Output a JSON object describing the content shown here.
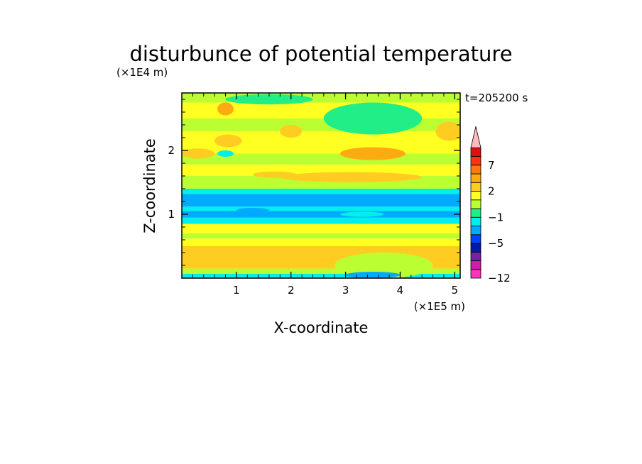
{
  "chart_data": {
    "type": "heatmap",
    "title": "disturbunce of potential temperature",
    "xlabel": "X-coordinate",
    "ylabel": "Z-coordinate",
    "x_unit": "(×1E5 m)",
    "y_unit": "(×1E4 m)",
    "time_label": "t=205200 s",
    "xlim": [
      0,
      5.1
    ],
    "ylim": [
      0,
      2.9
    ],
    "x_ticks": [
      1,
      2,
      3,
      4,
      5
    ],
    "y_ticks": [
      1,
      2
    ],
    "colorbar": {
      "levels": [
        -12,
        -11,
        -9,
        -7,
        -5,
        -4,
        -3,
        -1,
        0,
        1,
        2,
        3,
        5,
        7,
        9,
        11
      ],
      "labels": [
        "-12",
        "-5",
        "-1",
        "2",
        "7"
      ],
      "label_values": [
        -12,
        -5,
        -1,
        2,
        7
      ],
      "colors": [
        "#ff33bb",
        "#cc1fa6",
        "#7a1fa8",
        "#001aa8",
        "#0044ff",
        "#00aaff",
        "#00eeee",
        "#22ee88",
        "#bbff33",
        "#ffff22",
        "#ffcc22",
        "#ffaa11",
        "#ff7711",
        "#ff3311",
        "#dd1111",
        "#ffbbbb"
      ],
      "extend_max": true
    },
    "bands": [
      {
        "z0": 0.0,
        "z1": 0.07,
        "v": -1.5
      },
      {
        "z0": 0.07,
        "z1": 0.15,
        "v": 0.5
      },
      {
        "z0": 0.15,
        "z1": 0.5,
        "v": 2.5
      },
      {
        "z0": 0.5,
        "z1": 0.62,
        "v": 1.5
      },
      {
        "z0": 0.62,
        "z1": 0.7,
        "v": 0.5
      },
      {
        "z0": 0.7,
        "z1": 0.85,
        "v": 1.5
      },
      {
        "z0": 0.85,
        "z1": 0.95,
        "v": -1.5
      },
      {
        "z0": 0.95,
        "z1": 1.05,
        "v": -3.5
      },
      {
        "z0": 1.05,
        "z1": 1.12,
        "v": -1.5
      },
      {
        "z0": 1.12,
        "z1": 1.32,
        "v": -3.5
      },
      {
        "z0": 1.32,
        "z1": 1.4,
        "v": -1.5
      },
      {
        "z0": 1.4,
        "z1": 1.6,
        "v": 0.5
      },
      {
        "z0": 1.6,
        "z1": 1.78,
        "v": 1.5
      },
      {
        "z0": 1.78,
        "z1": 1.95,
        "v": 0.5
      },
      {
        "z0": 1.95,
        "z1": 2.3,
        "v": 1.5
      },
      {
        "z0": 2.3,
        "z1": 2.5,
        "v": 0.5
      },
      {
        "z0": 2.5,
        "z1": 2.75,
        "v": 1.5
      },
      {
        "z0": 2.75,
        "z1": 2.9,
        "v": 0.5
      }
    ],
    "features": [
      {
        "x": 0.6,
        "z": 0.3,
        "rx": 1.5,
        "rz": 0.12,
        "v": 2.5
      },
      {
        "x": 3.7,
        "z": 0.2,
        "rx": 0.9,
        "rz": 0.2,
        "v": 0.5
      },
      {
        "x": 3.5,
        "z": 0.05,
        "rx": 0.5,
        "rz": 0.05,
        "v": -3.5
      },
      {
        "x": 1.3,
        "z": 1.06,
        "rx": 0.3,
        "rz": 0.04,
        "v": -3.5
      },
      {
        "x": 3.3,
        "z": 1.0,
        "rx": 0.4,
        "rz": 0.04,
        "v": -1.5
      },
      {
        "x": 3.1,
        "z": 1.58,
        "rx": 1.3,
        "rz": 0.08,
        "v": 2.5
      },
      {
        "x": 1.7,
        "z": 1.62,
        "rx": 0.4,
        "rz": 0.05,
        "v": 2.5
      },
      {
        "x": 3.5,
        "z": 1.95,
        "rx": 0.6,
        "rz": 0.1,
        "v": 3.5
      },
      {
        "x": 3.6,
        "z": 2.45,
        "rx": 0.6,
        "rz": 0.12,
        "v": -1.5
      },
      {
        "x": 3.5,
        "z": 2.5,
        "rx": 0.9,
        "rz": 0.25,
        "v": -0.5
      },
      {
        "x": 0.8,
        "z": 2.65,
        "rx": 0.15,
        "rz": 0.1,
        "v": 3.5
      },
      {
        "x": 0.85,
        "z": 2.15,
        "rx": 0.25,
        "rz": 0.1,
        "v": 2.5
      },
      {
        "x": 0.8,
        "z": 1.95,
        "rx": 0.15,
        "rz": 0.05,
        "v": -1.5
      },
      {
        "x": 2.0,
        "z": 2.3,
        "rx": 0.2,
        "rz": 0.1,
        "v": 2.5
      },
      {
        "x": 4.9,
        "z": 2.3,
        "rx": 0.25,
        "rz": 0.15,
        "v": 2.5
      },
      {
        "x": 0.3,
        "z": 1.95,
        "rx": 0.3,
        "rz": 0.08,
        "v": 2.5
      },
      {
        "x": 1.6,
        "z": 2.8,
        "rx": 0.8,
        "rz": 0.08,
        "v": -0.5
      }
    ]
  }
}
